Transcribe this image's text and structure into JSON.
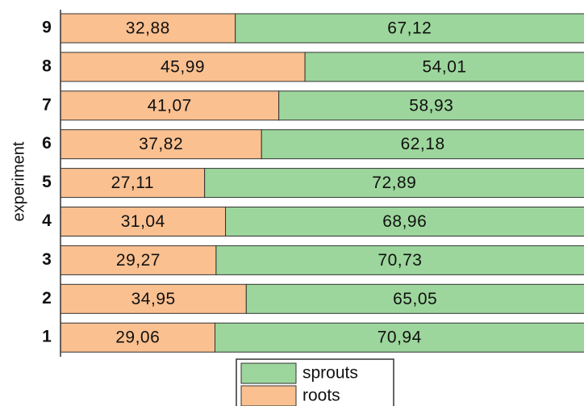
{
  "chart_data": {
    "type": "stacked_barh",
    "y_label": "experiment",
    "categories": [
      "1",
      "2",
      "3",
      "4",
      "5",
      "6",
      "7",
      "8",
      "9"
    ],
    "xlim": [
      0,
      100
    ],
    "series": [
      {
        "name": "roots",
        "color": "#fac090",
        "values": [
          29.06,
          34.95,
          29.27,
          31.04,
          27.11,
          37.82,
          41.07,
          45.99,
          32.88
        ],
        "value_labels": [
          "29,06",
          "34,95",
          "29,27",
          "31,04",
          "27,11",
          "37,82",
          "41,07",
          "45,99",
          "32,88"
        ]
      },
      {
        "name": "sprouts",
        "color": "#9cd69c",
        "values": [
          70.94,
          65.05,
          70.73,
          68.96,
          72.89,
          62.18,
          58.93,
          54.01,
          67.12
        ],
        "value_labels": [
          "70,94",
          "65,05",
          "70,73",
          "68,96",
          "72,89",
          "62,18",
          "58,93",
          "54,01",
          "67,12"
        ]
      }
    ],
    "legend": "bottom"
  }
}
